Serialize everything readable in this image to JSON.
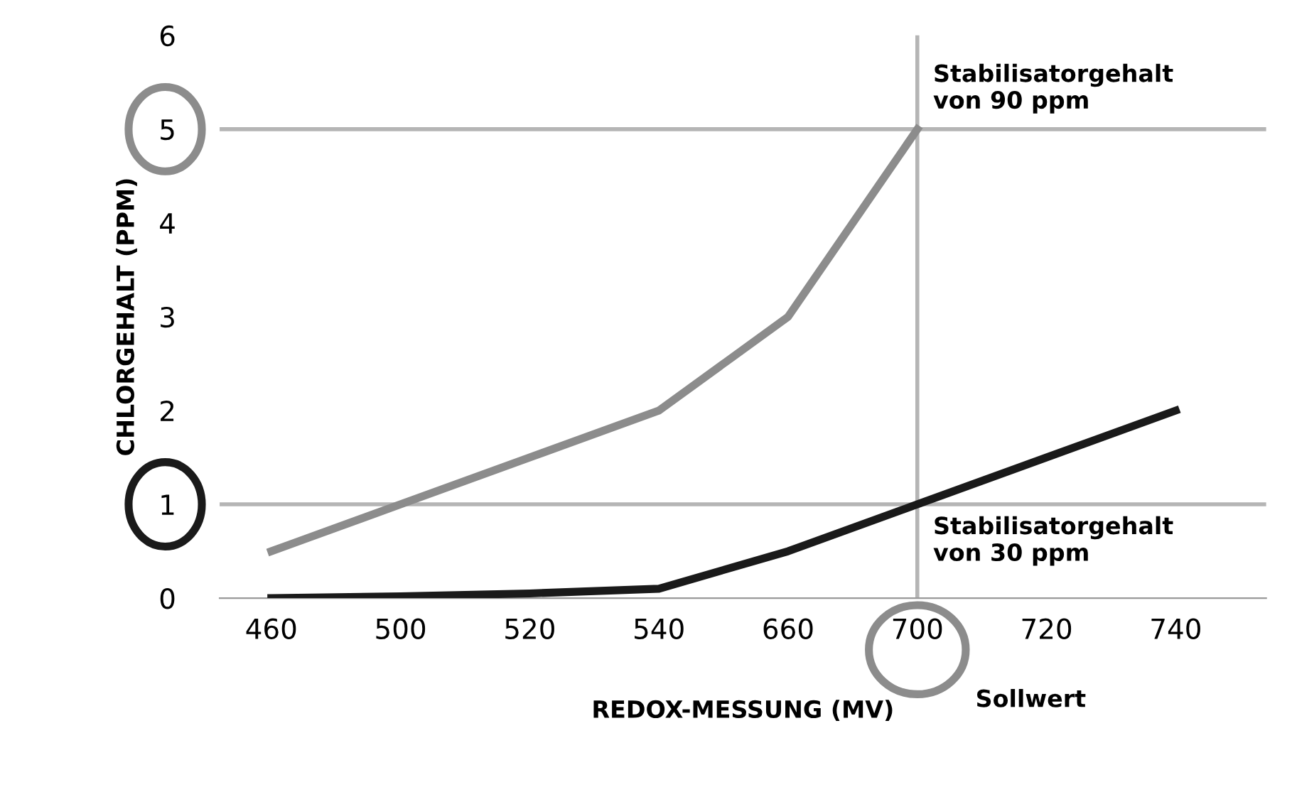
{
  "chart_data": {
    "type": "line",
    "xlabel": "REDOX-MESSUNG (MV)",
    "ylabel": "CHLORGEHALT (PPM)",
    "categories": [
      "460",
      "500",
      "520",
      "540",
      "660",
      "700",
      "720",
      "740"
    ],
    "series": [
      {
        "color": "#8c8c8c",
        "values": [
          0.5,
          1,
          1.5,
          2,
          3,
          5,
          null,
          null
        ]
      },
      {
        "color": "#1a1a1a",
        "values": [
          0,
          0.02,
          0.05,
          0.1,
          0.5,
          1,
          1.5,
          2
        ]
      }
    ],
    "ylim": [
      0,
      6
    ],
    "yticks": [
      0,
      1,
      2,
      3,
      4,
      5,
      6
    ],
    "grid": false,
    "legend": false,
    "marker": "none",
    "line_style": "solid",
    "ref_lines": [
      {
        "axis": "y",
        "value": 5,
        "color": "#b5b5b5"
      },
      {
        "axis": "y",
        "value": 1,
        "color": "#b5b5b5"
      },
      {
        "axis": "x",
        "value": "700",
        "color": "#b5b5b5"
      }
    ],
    "annotations": [
      {
        "text": "Stabilisatorgehalt\nvon 90 ppm",
        "x": "700",
        "y": 5
      },
      {
        "text": "Stabilisatorgehalt\nvon 30 ppm",
        "x": "700",
        "y": 1
      },
      "Sollwert"
    ]
  }
}
